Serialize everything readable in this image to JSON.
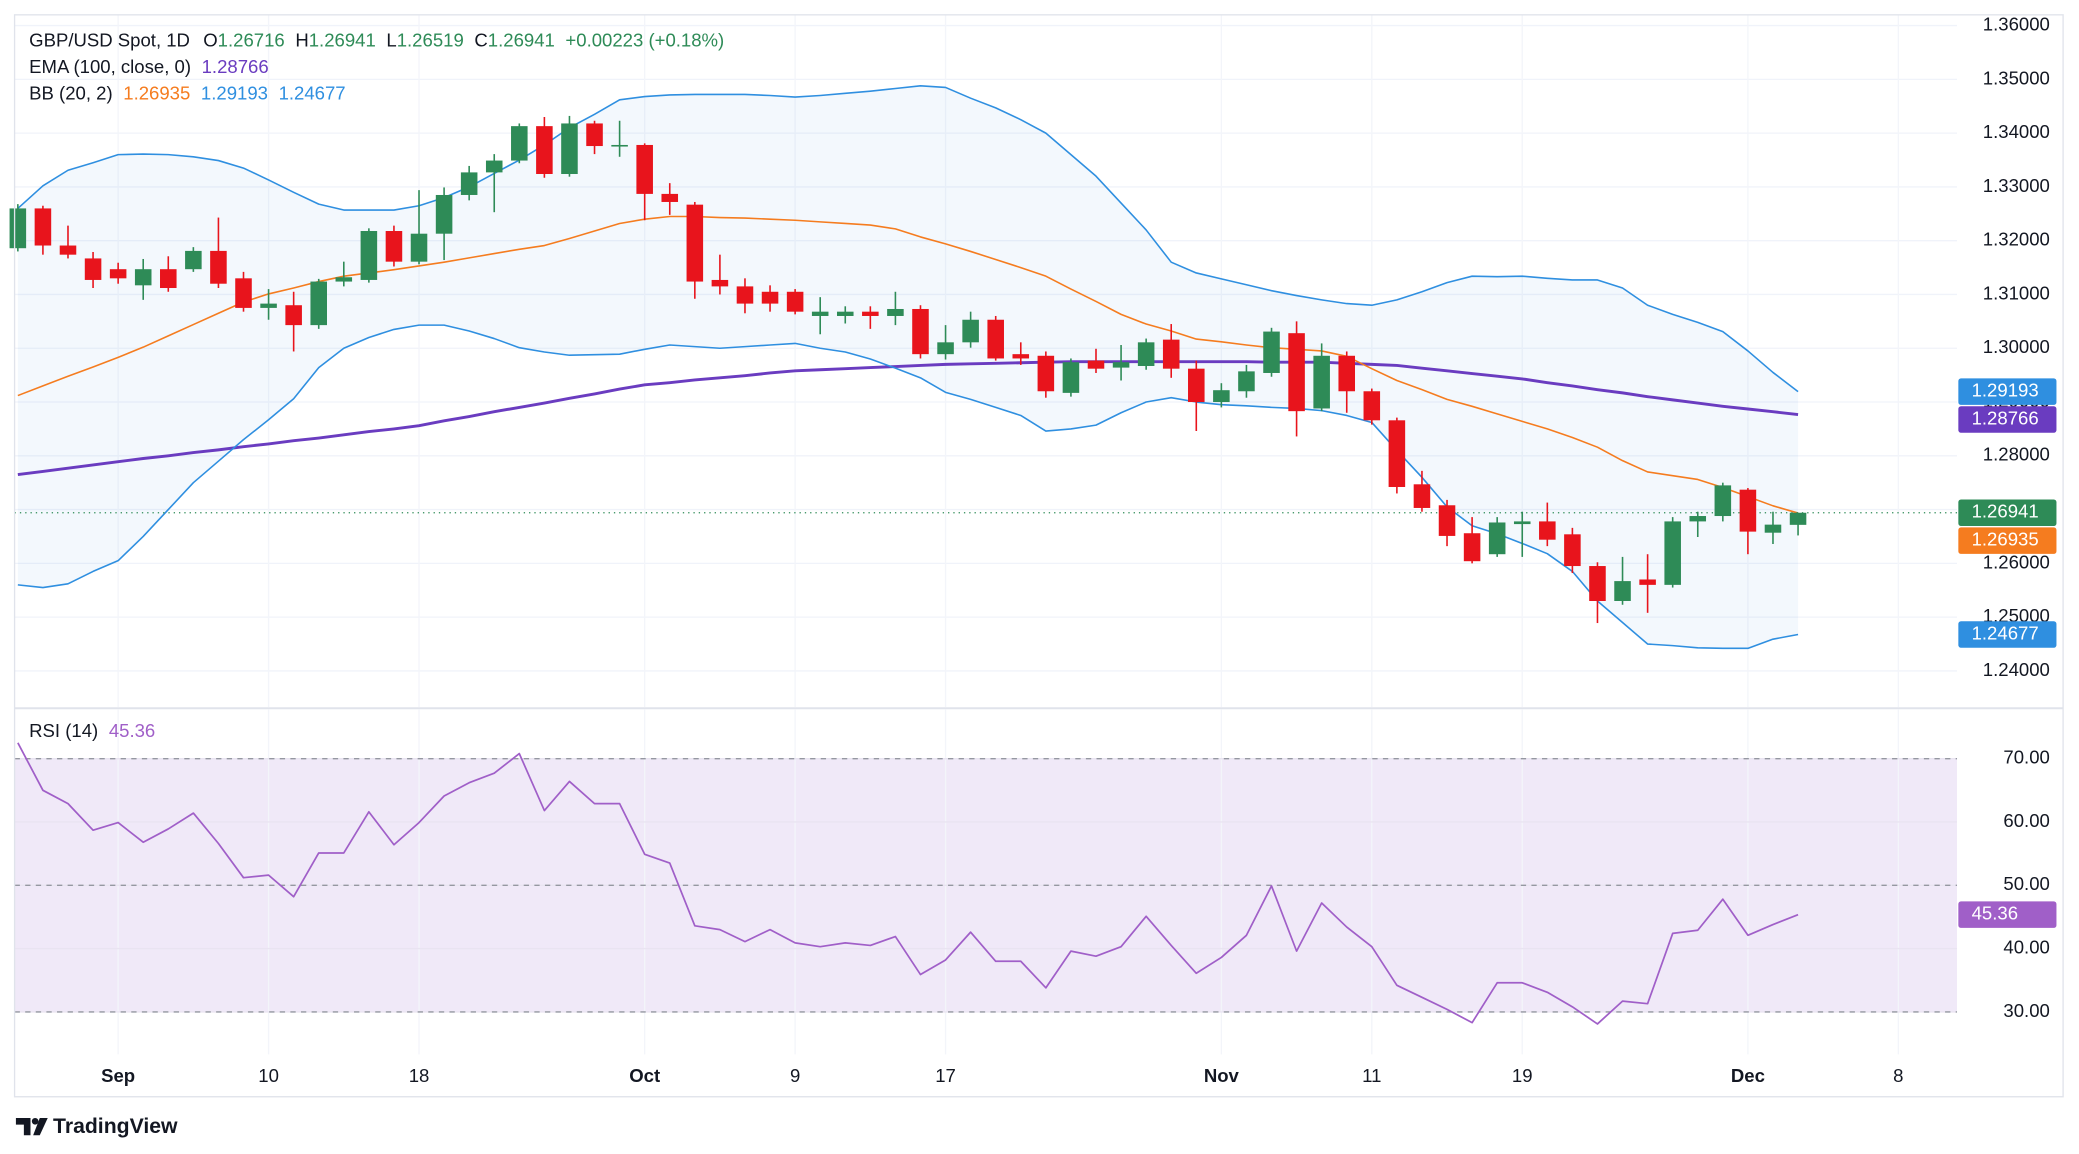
{
  "chart_data": [
    {
      "type": "candlestick",
      "title": "GBP/USD Spot, 1D",
      "ohlc_labels": [
        "O",
        "H",
        "L",
        "C"
      ],
      "change": "+0.00223 (+0.18%)",
      "up_color": "#2e8b57",
      "down_color": "#e8141c",
      "last_price_line": true,
      "grid": true,
      "xlim": [
        -0.13,
        77.34
      ],
      "xticks": [
        {
          "value": 4,
          "label": "Sep"
        },
        {
          "value": 10,
          "label": "10"
        },
        {
          "value": 16,
          "label": "18"
        },
        {
          "value": 25,
          "label": "Oct"
        },
        {
          "value": 31,
          "label": "9"
        },
        {
          "value": 37,
          "label": "17"
        },
        {
          "value": 48,
          "label": "Nov"
        },
        {
          "value": 54,
          "label": "11"
        },
        {
          "value": 60,
          "label": "19"
        },
        {
          "value": 69,
          "label": "Dec"
        },
        {
          "value": 75,
          "label": "8"
        }
      ],
      "ylim": [
        1.2333,
        1.362
      ],
      "yticks": [
        {
          "value": 1.24,
          "label": "1.24000"
        },
        {
          "value": 1.25,
          "label": "1.25000"
        },
        {
          "value": 1.26,
          "label": "1.26000"
        },
        {
          "value": 1.27,
          "label": "1.27000"
        },
        {
          "value": 1.28,
          "label": "1.28000"
        },
        {
          "value": 1.29,
          "label": "1.29000"
        },
        {
          "value": 1.3,
          "label": "1.30000"
        },
        {
          "value": 1.31,
          "label": "1.31000"
        },
        {
          "value": 1.32,
          "label": "1.32000"
        },
        {
          "value": 1.33,
          "label": "1.33000"
        },
        {
          "value": 1.34,
          "label": "1.34000"
        },
        {
          "value": 1.35,
          "label": "1.35000"
        },
        {
          "value": 1.36,
          "label": "1.36000"
        }
      ],
      "open": [
        1.3186,
        1.326,
        1.3191,
        1.3167,
        1.3147,
        1.3117,
        1.3147,
        1.3147,
        1.3181,
        1.313,
        1.3075,
        1.308,
        1.3043,
        1.3124,
        1.3127,
        1.3218,
        1.3161,
        1.3213,
        1.3285,
        1.3327,
        1.3349,
        1.3413,
        1.3324,
        1.3418,
        1.3376,
        1.3378,
        1.3287,
        1.3267,
        1.3127,
        1.3115,
        1.3105,
        1.3105,
        1.306,
        1.306,
        1.3068,
        1.306,
        1.3073,
        1.2989,
        1.3011,
        1.3053,
        1.2989,
        1.2986,
        1.2917,
        1.2977,
        1.2964,
        1.2967,
        1.3016,
        1.2962,
        1.29,
        1.292,
        1.2954,
        1.3028,
        1.2888,
        1.2986,
        1.292,
        1.2866,
        1.2747,
        1.2708,
        1.2656,
        1.2617,
        1.2673,
        1.2678,
        1.2654,
        1.2595,
        1.253,
        1.257,
        1.256,
        1.2678,
        1.2688,
        1.2737,
        1.2657,
        1.26716
      ],
      "high": [
        1.3268,
        1.3265,
        1.3228,
        1.3179,
        1.3159,
        1.3166,
        1.3171,
        1.3188,
        1.3243,
        1.3142,
        1.311,
        1.3105,
        1.3129,
        1.3161,
        1.3223,
        1.3228,
        1.3294,
        1.3299,
        1.3339,
        1.3361,
        1.3418,
        1.343,
        1.3432,
        1.3423,
        1.3423,
        1.3381,
        1.3307,
        1.3272,
        1.3174,
        1.313,
        1.3117,
        1.311,
        1.3095,
        1.3078,
        1.3078,
        1.3105,
        1.308,
        1.3043,
        1.3068,
        1.306,
        1.3011,
        1.2994,
        1.2981,
        1.2999,
        1.3006,
        1.3018,
        1.3045,
        1.2977,
        1.2935,
        1.2969,
        1.3038,
        1.305,
        1.3009,
        1.2994,
        1.2925,
        1.2871,
        1.2772,
        1.2718,
        1.2686,
        1.2686,
        1.2696,
        1.2713,
        1.2666,
        1.2602,
        1.2612,
        1.2617,
        1.2686,
        1.2696,
        1.275,
        1.274,
        1.2696,
        1.26941
      ],
      "low": [
        1.318,
        1.3174,
        1.3167,
        1.3112,
        1.312,
        1.309,
        1.3105,
        1.3142,
        1.3112,
        1.3068,
        1.3053,
        1.2994,
        1.3036,
        1.3115,
        1.3122,
        1.3152,
        1.3156,
        1.3164,
        1.3275,
        1.3253,
        1.3344,
        1.3317,
        1.3319,
        1.3361,
        1.3356,
        1.3238,
        1.3248,
        1.3092,
        1.31,
        1.3065,
        1.3068,
        1.3063,
        1.3026,
        1.3046,
        1.3036,
        1.3043,
        1.2981,
        1.2979,
        1.3001,
        1.2977,
        1.2969,
        1.2908,
        1.291,
        1.2954,
        1.294,
        1.296,
        1.2945,
        1.2846,
        1.289,
        1.2908,
        1.2947,
        1.2836,
        1.2883,
        1.288,
        1.2858,
        1.273,
        1.2696,
        1.2632,
        1.26,
        1.2612,
        1.2612,
        1.2632,
        1.2582,
        1.2489,
        1.2523,
        1.2508,
        1.2555,
        1.2649,
        1.2678,
        1.2617,
        1.2636,
        1.26519
      ],
      "close": [
        1.326,
        1.3191,
        1.3174,
        1.3127,
        1.313,
        1.3147,
        1.3112,
        1.3181,
        1.312,
        1.3075,
        1.3083,
        1.3043,
        1.3124,
        1.3132,
        1.3218,
        1.3161,
        1.3213,
        1.3285,
        1.3327,
        1.3349,
        1.3413,
        1.3324,
        1.3418,
        1.3376,
        1.3378,
        1.3287,
        1.3272,
        1.3124,
        1.3115,
        1.3083,
        1.3083,
        1.3068,
        1.3068,
        1.3068,
        1.306,
        1.3073,
        1.2989,
        1.3011,
        1.3053,
        1.2981,
        1.2981,
        1.292,
        1.2974,
        1.2962,
        1.2974,
        1.3011,
        1.2962,
        1.29,
        1.2922,
        1.2957,
        1.3031,
        1.2883,
        1.2986,
        1.292,
        1.2866,
        1.2742,
        1.2703,
        1.2651,
        1.2604,
        1.2676,
        1.2678,
        1.2644,
        1.2595,
        1.253,
        1.2567,
        1.256,
        1.2678,
        1.2688,
        1.2745,
        1.2659,
        1.2672,
        1.26941
      ],
      "indicators": [
        {
          "name": "EMA (100, close, 0)",
          "lines": [
            {
              "color": "#6a3cc0",
              "width": 2.2,
              "values": [
                1.2765,
                1.2771,
                1.2777,
                1.2783,
                1.2789,
                1.2795,
                1.28,
                1.2806,
                1.2811,
                1.2817,
                1.2822,
                1.2828,
                1.2833,
                1.2839,
                1.2845,
                1.285,
                1.2856,
                1.2865,
                1.2873,
                1.2882,
                1.289,
                1.2898,
                1.2907,
                1.2915,
                1.2924,
                1.2932,
                1.2936,
                1.2941,
                1.2945,
                1.2949,
                1.2954,
                1.2958,
                1.296,
                1.2962,
                1.2964,
                1.2966,
                1.2968,
                1.297,
                1.2971,
                1.2972,
                1.2973,
                1.2974,
                1.2975,
                1.2975,
                1.2975,
                1.2975,
                1.2975,
                1.2975,
                1.2975,
                1.2975,
                1.2974,
                1.2974,
                1.2974,
                1.2972,
                1.297,
                1.2968,
                1.2963,
                1.2958,
                1.2953,
                1.2948,
                1.2943,
                1.2936,
                1.293,
                1.2923,
                1.2917,
                1.291,
                1.2904,
                1.2898,
                1.2892,
                1.2887,
                1.2882,
                1.28766
              ]
            }
          ]
        },
        {
          "name": "BB (20, 2)",
          "band_fill": "#2f8fe0",
          "lines": [
            {
              "color": "#f57c1f",
              "width": 1.2,
              "values": [
                1.2912,
                1.293,
                1.2948,
                1.2965,
                1.2983,
                1.3002,
                1.3023,
                1.3044,
                1.3065,
                1.3086,
                1.3101,
                1.3112,
                1.3124,
                1.3134,
                1.314,
                1.3146,
                1.3153,
                1.316,
                1.3168,
                1.3176,
                1.3184,
                1.3191,
                1.3204,
                1.3218,
                1.3232,
                1.324,
                1.3245,
                1.3245,
                1.3243,
                1.3242,
                1.324,
                1.3238,
                1.3235,
                1.3232,
                1.3229,
                1.3222,
                1.3207,
                1.3194,
                1.318,
                1.3165,
                1.315,
                1.3134,
                1.311,
                1.3087,
                1.3063,
                1.3045,
                1.3032,
                1.3017,
                1.3012,
                1.3006,
                1.3001,
                1.2998,
                1.2995,
                1.2985,
                1.2962,
                1.294,
                1.2923,
                1.2905,
                1.2892,
                1.2878,
                1.2864,
                1.285,
                1.2834,
                1.2816,
                1.2791,
                1.277,
                1.2763,
                1.2756,
                1.2741,
                1.2724,
                1.2707,
                1.26935
              ]
            },
            {
              "color": "#2f8fe0",
              "width": 1.2,
              "values": [
                1.326,
                1.3302,
                1.3331,
                1.3345,
                1.336,
                1.3361,
                1.336,
                1.3356,
                1.3349,
                1.3335,
                1.3313,
                1.329,
                1.3268,
                1.3257,
                1.3257,
                1.3257,
                1.3265,
                1.328,
                1.33,
                1.3325,
                1.335,
                1.3378,
                1.341,
                1.3435,
                1.3462,
                1.3468,
                1.3471,
                1.3472,
                1.3472,
                1.3472,
                1.347,
                1.3467,
                1.347,
                1.3474,
                1.3478,
                1.3483,
                1.3488,
                1.3485,
                1.3465,
                1.3447,
                1.3425,
                1.34,
                1.336,
                1.332,
                1.327,
                1.322,
                1.316,
                1.314,
                1.3129,
                1.3118,
                1.3107,
                1.3098,
                1.309,
                1.3083,
                1.308,
                1.309,
                1.3105,
                1.3122,
                1.3134,
                1.3133,
                1.3134,
                1.313,
                1.3127,
                1.3127,
                1.3112,
                1.308,
                1.3063,
                1.3048,
                1.3031,
                1.2995,
                1.2955,
                1.29193
              ]
            },
            {
              "color": "#2f8fe0",
              "width": 1.2,
              "values": [
                1.256,
                1.2555,
                1.2562,
                1.2585,
                1.2605,
                1.265,
                1.27,
                1.275,
                1.279,
                1.283,
                1.2867,
                1.2906,
                1.2964,
                1.3,
                1.302,
                1.3035,
                1.3043,
                1.3043,
                1.3032,
                1.3018,
                1.3001,
                1.2993,
                1.2987,
                1.2988,
                1.2989,
                1.2998,
                1.3006,
                1.3003,
                1.3,
                1.3003,
                1.3006,
                1.3009,
                1.3,
                1.2993,
                1.298,
                1.2963,
                1.2945,
                1.2918,
                1.2905,
                1.289,
                1.2875,
                1.2846,
                1.285,
                1.2857,
                1.288,
                1.29,
                1.2908,
                1.29,
                1.2895,
                1.2893,
                1.289,
                1.2888,
                1.2884,
                1.2875,
                1.2862,
                1.281,
                1.276,
                1.2705,
                1.267,
                1.2655,
                1.2637,
                1.2618,
                1.2585,
                1.253,
                1.249,
                1.245,
                1.2447,
                1.2443,
                1.2442,
                1.2442,
                1.2459,
                1.24677
              ]
            }
          ]
        }
      ]
    },
    {
      "type": "line",
      "title": "RSI (14)",
      "color": "#a05fc8",
      "band_color": "#ece4f6",
      "xlim": [
        -0.13,
        77.34
      ],
      "ylim": [
        23.3,
        77.75
      ],
      "yticks": [
        {
          "value": 30,
          "label": "30.00"
        },
        {
          "value": 40,
          "label": "40.00"
        },
        {
          "value": 50,
          "label": "50.00"
        },
        {
          "value": 60,
          "label": "60.00"
        },
        {
          "value": 70,
          "label": "70.00"
        }
      ],
      "levels": [
        30,
        50,
        70
      ],
      "values": [
        72.5,
        65.0,
        62.9,
        58.7,
        59.9,
        56.8,
        58.9,
        61.4,
        56.6,
        51.2,
        51.6,
        48.2,
        55.1,
        55.1,
        61.6,
        56.4,
        59.9,
        64.1,
        66.2,
        67.7,
        70.8,
        61.8,
        66.4,
        62.9,
        62.9,
        54.9,
        53.5,
        43.6,
        43.0,
        41.1,
        43.0,
        40.9,
        40.3,
        40.9,
        40.5,
        41.9,
        35.9,
        38.2,
        42.6,
        38.0,
        38.0,
        33.8,
        39.6,
        38.8,
        40.3,
        45.1,
        40.5,
        36.1,
        38.6,
        42.1,
        49.9,
        39.6,
        47.2,
        43.4,
        40.3,
        34.2,
        32.3,
        30.4,
        28.3,
        34.6,
        34.6,
        33.1,
        30.8,
        28.1,
        31.7,
        31.3,
        42.4,
        42.9,
        47.8,
        42.1,
        43.8,
        45.36
      ]
    }
  ],
  "footer": {
    "brand": "TradingView"
  }
}
